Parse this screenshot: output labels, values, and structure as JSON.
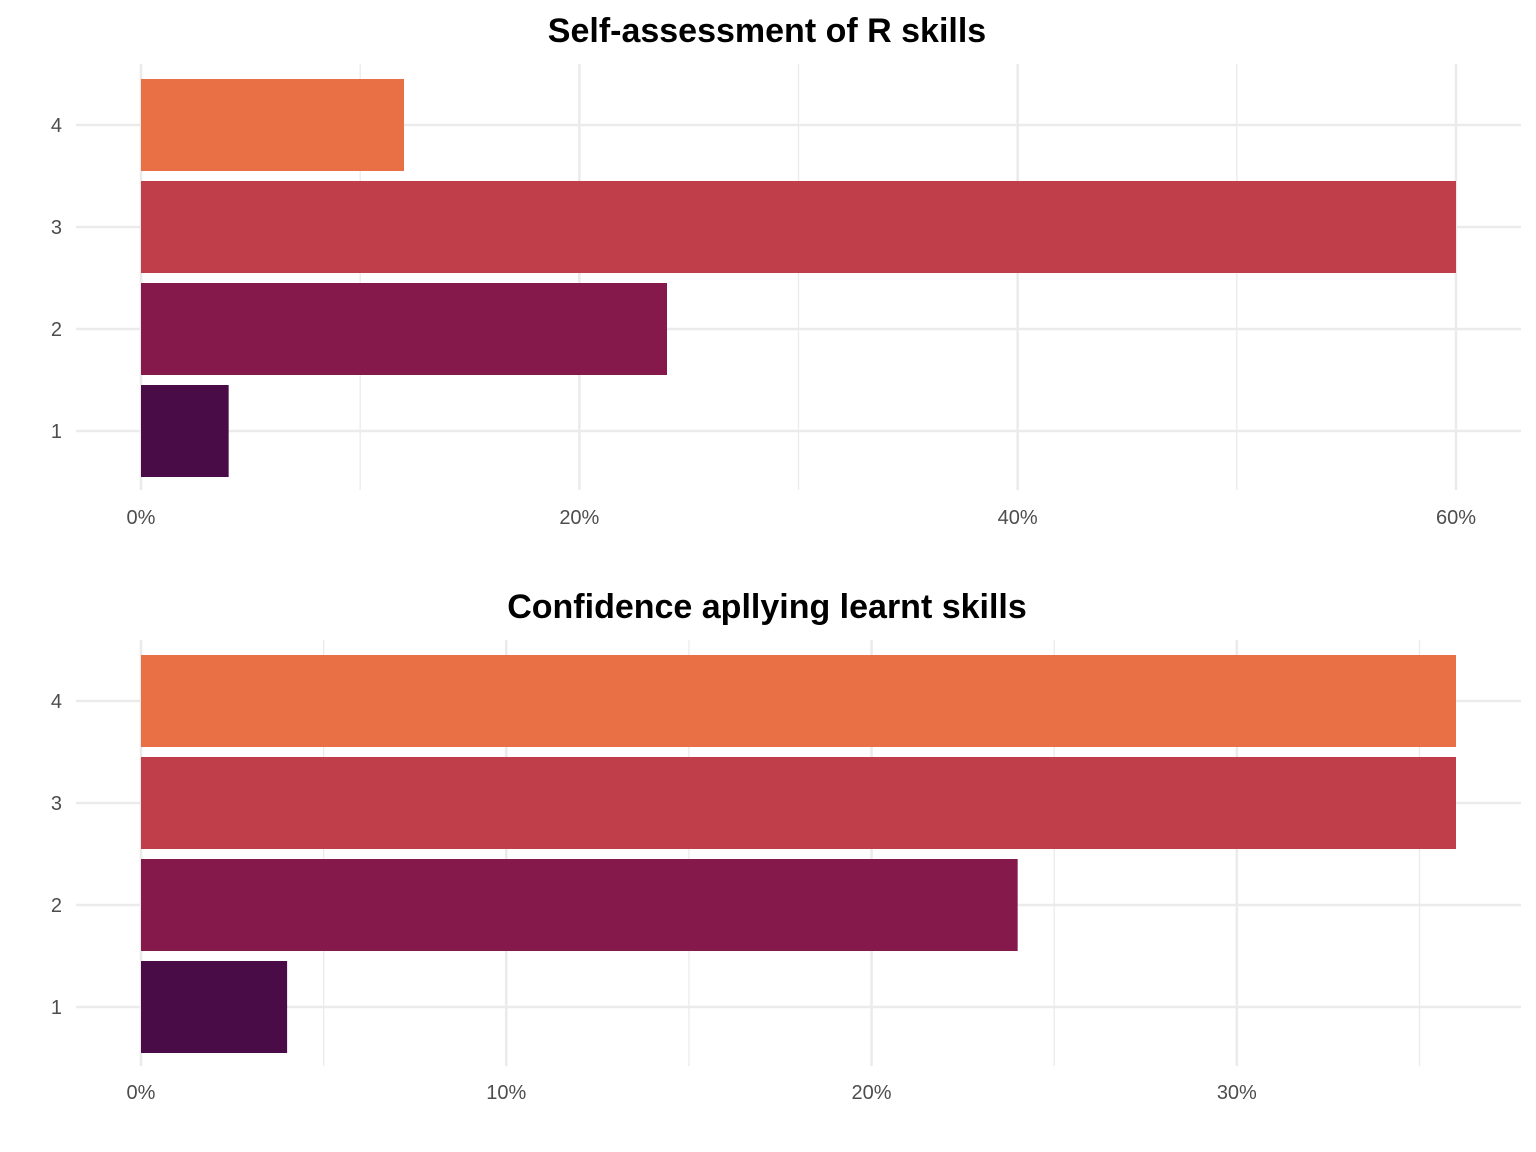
{
  "chart_data": [
    {
      "type": "bar",
      "orientation": "horizontal",
      "title": "Self-assessment of R skills",
      "xlabel": "",
      "ylabel": "",
      "categories": [
        "1",
        "2",
        "3",
        "4"
      ],
      "values": [
        4,
        24,
        60,
        12
      ],
      "value_unit": "%",
      "xlim": [
        0,
        60
      ],
      "x_ticks": [
        0,
        20,
        40,
        60
      ],
      "x_tick_labels": [
        "0%",
        "20%",
        "40%",
        "60%"
      ],
      "colors": [
        "#4a0c47",
        "#86194b",
        "#c03d4a",
        "#e96f45"
      ],
      "grid": true,
      "legend": "none"
    },
    {
      "type": "bar",
      "orientation": "horizontal",
      "title": "Confidence apllying learnt skills",
      "xlabel": "",
      "ylabel": "",
      "categories": [
        "1",
        "2",
        "3",
        "4"
      ],
      "values": [
        4,
        24,
        36,
        36
      ],
      "value_unit": "%",
      "xlim": [
        0,
        36
      ],
      "x_ticks": [
        0,
        10,
        20,
        30
      ],
      "x_tick_labels": [
        "0%",
        "10%",
        "20%",
        "30%"
      ],
      "colors": [
        "#4a0c47",
        "#86194b",
        "#c03d4a",
        "#e96f45"
      ],
      "grid": true,
      "legend": "none"
    }
  ]
}
